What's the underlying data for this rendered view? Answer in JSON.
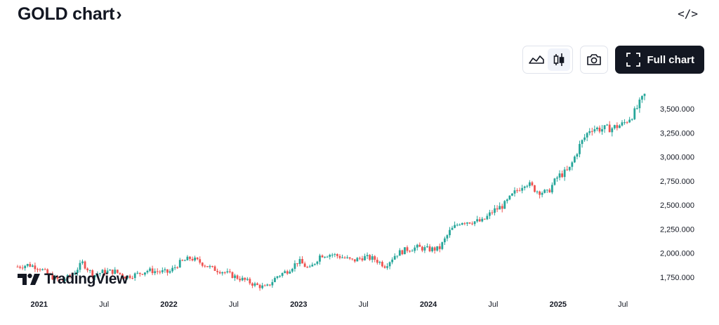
{
  "header": {
    "title": "GOLD chart",
    "chevron": "›",
    "embed_icon": "</>"
  },
  "toolbar": {
    "area_icon": "area-chart-icon",
    "candles_icon": "candlestick-icon",
    "camera_icon": "camera-icon",
    "fullscreen_icon": "fullscreen-icon",
    "full_chart_label": "Full chart"
  },
  "logo": {
    "text": "TradingView"
  },
  "colors": {
    "up": "#26a69a",
    "down": "#ef5350",
    "text": "#131722",
    "button_dark": "#131722"
  },
  "chart_data": {
    "type": "candlestick",
    "timeframe": "weekly",
    "y_tick_labels": [
      "3,500.000",
      "3,250.000",
      "3,000.000",
      "2,750.000",
      "2,500.000",
      "2,250.000",
      "2,000.000",
      "1,750.000"
    ],
    "y_ticks": [
      3500,
      3250,
      3000,
      2750,
      2500,
      2250,
      2000,
      1750
    ],
    "x_tick_labels": [
      "2021",
      "Jul",
      "2022",
      "Jul",
      "2023",
      "Jul",
      "2024",
      "Jul",
      "2025",
      "Jul"
    ],
    "x_range": [
      "2020-11",
      "2025-09"
    ],
    "ylim": [
      1600,
      3700
    ],
    "close_path": [
      [
        "2020-11",
        1860
      ],
      [
        "2020-12",
        1880
      ],
      [
        "2021-01",
        1850
      ],
      [
        "2021-02",
        1765
      ],
      [
        "2021-03",
        1710
      ],
      [
        "2021-04",
        1770
      ],
      [
        "2021-05",
        1900
      ],
      [
        "2021-06",
        1770
      ],
      [
        "2021-07",
        1810
      ],
      [
        "2021-08",
        1810
      ],
      [
        "2021-09",
        1755
      ],
      [
        "2021-10",
        1780
      ],
      [
        "2021-11",
        1820
      ],
      [
        "2021-12",
        1810
      ],
      [
        "2022-01",
        1800
      ],
      [
        "2022-02",
        1900
      ],
      [
        "2022-03",
        1950
      ],
      [
        "2022-04",
        1900
      ],
      [
        "2022-05",
        1840
      ],
      [
        "2022-06",
        1810
      ],
      [
        "2022-07",
        1760
      ],
      [
        "2022-08",
        1720
      ],
      [
        "2022-09",
        1670
      ],
      [
        "2022-10",
        1640
      ],
      [
        "2022-11",
        1760
      ],
      [
        "2022-12",
        1820
      ],
      [
        "2023-01",
        1920
      ],
      [
        "2023-02",
        1830
      ],
      [
        "2023-03",
        1980
      ],
      [
        "2023-04",
        1990
      ],
      [
        "2023-05",
        1960
      ],
      [
        "2023-06",
        1920
      ],
      [
        "2023-07",
        1960
      ],
      [
        "2023-08",
        1940
      ],
      [
        "2023-09",
        1870
      ],
      [
        "2023-10",
        1990
      ],
      [
        "2023-11",
        2040
      ],
      [
        "2023-12",
        2060
      ],
      [
        "2024-01",
        2040
      ],
      [
        "2024-02",
        2045
      ],
      [
        "2024-03",
        2230
      ],
      [
        "2024-04",
        2330
      ],
      [
        "2024-05",
        2330
      ],
      [
        "2024-06",
        2330
      ],
      [
        "2024-07",
        2440
      ],
      [
        "2024-08",
        2500
      ],
      [
        "2024-09",
        2630
      ],
      [
        "2024-10",
        2740
      ],
      [
        "2024-11",
        2650
      ],
      [
        "2024-12",
        2625
      ],
      [
        "2025-01",
        2800
      ],
      [
        "2025-02",
        2860
      ],
      [
        "2025-03",
        3120
      ],
      [
        "2025-04",
        3300
      ],
      [
        "2025-05",
        3290
      ],
      [
        "2025-06",
        3300
      ],
      [
        "2025-07",
        3340
      ],
      [
        "2025-08",
        3450
      ],
      [
        "2025-09",
        3640
      ]
    ],
    "grid": false,
    "legend": "none"
  }
}
